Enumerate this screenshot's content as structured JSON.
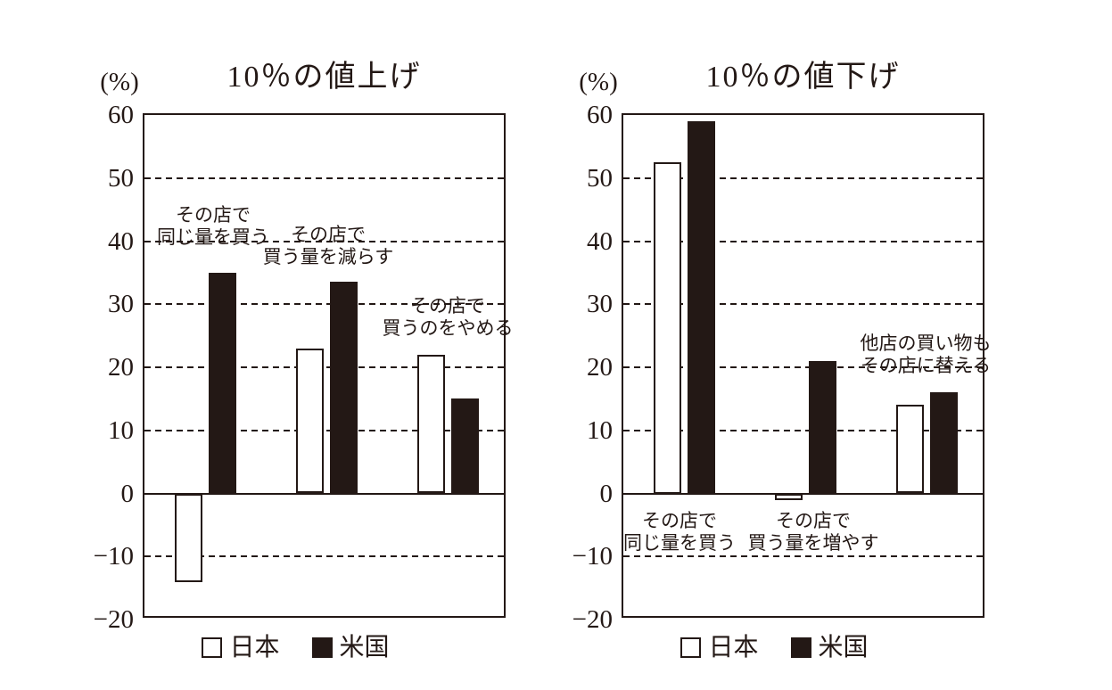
{
  "colors": {
    "japan_fill": "#ffffff",
    "us_fill": "#231815",
    "line": "#231815",
    "background": "#ffffff"
  },
  "chart_data": [
    {
      "type": "bar",
      "title": "10％の値上げ",
      "unit_label": "(%)",
      "categories": [
        "その店で同じ量を買う",
        "その店で買う量を減らす",
        "その店で買うのをやめる"
      ],
      "series": [
        {
          "name": "日本",
          "values": [
            -14,
            23,
            22
          ]
        },
        {
          "name": "米国",
          "values": [
            35,
            33.5,
            15
          ]
        }
      ],
      "ylim": [
        -20,
        60
      ],
      "ytick_step": 10,
      "grid": "horizontal-dashed",
      "legend_position": "bottom",
      "annotations": [
        {
          "lines": [
            "その店で",
            "同じ量を買う"
          ],
          "cx": 77,
          "top": 100
        },
        {
          "lines": [
            "その店で",
            "買う量を減らす"
          ],
          "cx": 206,
          "top": 122
        },
        {
          "lines": [
            "その店で",
            "買うのをやめる"
          ],
          "cx": 340,
          "top": 202
        }
      ]
    },
    {
      "type": "bar",
      "title": "10％の値下げ",
      "unit_label": "(%)",
      "categories": [
        "その店で同じ量を買う",
        "その店で買う量を増やす",
        "他店の買い物もその店に替える"
      ],
      "series": [
        {
          "name": "日本",
          "values": [
            52.5,
            -1,
            14
          ]
        },
        {
          "name": "米国",
          "values": [
            59,
            21,
            16
          ]
        }
      ],
      "ylim": [
        -20,
        60
      ],
      "ytick_step": 10,
      "grid": "horizontal-dashed",
      "legend_position": "bottom",
      "annotations": [
        {
          "lines": [
            "その店で",
            "同じ量を買う"
          ],
          "cx": 63,
          "top": 443
        },
        {
          "lines": [
            "その店で",
            "買う量を増やす"
          ],
          "cx": 213,
          "top": 443
        },
        {
          "lines": [
            "他店の買い物も",
            "その店に替える"
          ],
          "cx": 339,
          "top": 244
        }
      ]
    }
  ]
}
